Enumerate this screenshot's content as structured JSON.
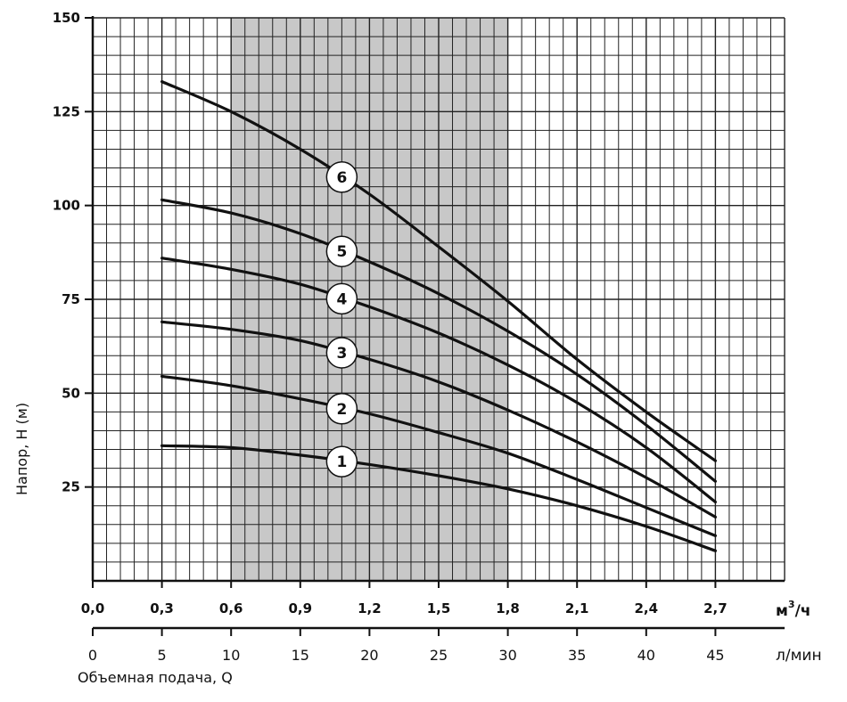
{
  "chart_data": {
    "type": "line",
    "ylabel": "Напор, H (м)",
    "xlabel": "Объемная подача, Q",
    "ylim": [
      0,
      150
    ],
    "yticks": [
      "25",
      "50",
      "75",
      "100",
      "125",
      "150"
    ],
    "x_m3h": {
      "unit": "м³/ч",
      "unit_base": "м",
      "unit_sup": "3",
      "unit_rest": "/ч",
      "lim": [
        0,
        3
      ],
      "ticks": [
        "0,0",
        "0,3",
        "0,6",
        "0,9",
        "1,2",
        "1,5",
        "1,8",
        "2,1",
        "2,4",
        "2,7"
      ]
    },
    "x_lmin": {
      "unit": "л/мин",
      "lim": [
        0,
        50
      ],
      "ticks": [
        "0",
        "5",
        "10",
        "15",
        "20",
        "25",
        "30",
        "35",
        "40",
        "45"
      ]
    },
    "recommended_range_m3h": [
      0.6,
      1.8
    ],
    "grid": true,
    "x": [
      0.3,
      0.6,
      0.9,
      1.2,
      1.5,
      1.8,
      2.1,
      2.4,
      2.7
    ],
    "series": [
      {
        "name": "1",
        "values": [
          36,
          35.5,
          33.5,
          31,
          28,
          24.5,
          20,
          14.5,
          8
        ]
      },
      {
        "name": "2",
        "values": [
          54.5,
          52,
          48.5,
          44.5,
          39.5,
          34,
          27,
          19.5,
          12
        ]
      },
      {
        "name": "3",
        "values": [
          69,
          67,
          64,
          59,
          53,
          45.5,
          37,
          27.5,
          17
        ]
      },
      {
        "name": "4",
        "values": [
          86,
          83,
          79,
          73,
          66,
          57.5,
          47.5,
          35.5,
          21
        ]
      },
      {
        "name": "5",
        "values": [
          101.5,
          98,
          92.5,
          85,
          76.5,
          66.5,
          55,
          41.5,
          26.5
        ]
      },
      {
        "name": "6",
        "values": [
          133,
          125,
          115,
          103,
          89,
          74.5,
          59,
          45,
          32
        ]
      }
    ],
    "series_label_x_m3h": 1.08,
    "series_color": "#111111",
    "range_fill": "#c8c8c8"
  }
}
